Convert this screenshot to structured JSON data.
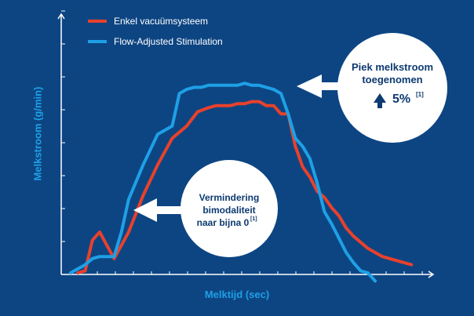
{
  "chart_data": {
    "type": "line",
    "xlabel": "Melktijd (sec)",
    "ylabel": "Melkstroom (g/min)",
    "xlim": [
      0,
      100
    ],
    "ylim": [
      0,
      100
    ],
    "grid": false,
    "legend": "top-left",
    "series": [
      {
        "name": "Enkel vacuümsysteem",
        "color": "#e8412c",
        "x": [
          2,
          4,
          6,
          8,
          12,
          16,
          20,
          24,
          28,
          32,
          35,
          38,
          40,
          42,
          44,
          46,
          48,
          50,
          52,
          54,
          56,
          58,
          60,
          62,
          64,
          66,
          68,
          70,
          72,
          74,
          76,
          78,
          82,
          86,
          88,
          92,
          94
        ],
        "y": [
          0,
          1,
          16,
          20,
          7,
          20,
          38,
          53,
          66,
          72,
          79,
          81,
          82,
          82,
          82,
          83,
          83,
          84,
          84,
          82,
          82,
          78,
          78,
          62,
          52,
          47,
          40,
          37,
          32,
          28,
          22,
          18,
          12,
          8,
          7,
          5,
          4
        ]
      },
      {
        "name": "Flow-Adjusted Stimulation",
        "color": "#1ea0e6",
        "x": [
          0,
          4,
          6,
          8,
          10,
          12,
          14,
          16,
          20,
          24,
          28,
          30,
          32,
          34,
          36,
          38,
          40,
          42,
          44,
          46,
          48,
          50,
          52,
          54,
          56,
          58,
          60,
          62,
          64,
          66,
          68,
          70,
          72,
          74,
          76,
          78,
          80,
          82,
          84
        ],
        "y": [
          0,
          4,
          7,
          8,
          8,
          8,
          20,
          36,
          53,
          68,
          72,
          88,
          90,
          91,
          91,
          92,
          92,
          92,
          92,
          92,
          93,
          92,
          92,
          91,
          90,
          88,
          78,
          66,
          62,
          56,
          44,
          30,
          24,
          17,
          10,
          5,
          1,
          0,
          -4
        ]
      }
    ],
    "annotations": [
      {
        "id": "peak",
        "lines": [
          "Piek melkstroom",
          "toegenomen"
        ],
        "arrow_label": "5%",
        "footnote": "[1]",
        "arrow_icon": "arrow-up-icon"
      },
      {
        "id": "bimodal",
        "lines": [
          "Vermindering",
          "bimodaliteit",
          "naar bijna 0"
        ],
        "footnote": "[1]"
      }
    ]
  }
}
